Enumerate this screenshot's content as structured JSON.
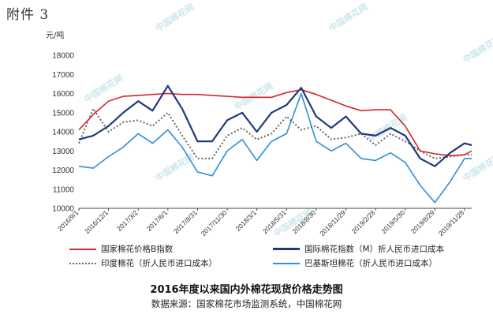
{
  "attachment_label": "附件 3",
  "caption": {
    "title": "2016年度以来国内外棉花现货价格走势图",
    "source": "数据来源：国家棉花市场监测系统，中国棉花网"
  },
  "watermark_text": "中国棉花网",
  "chart_data": {
    "type": "line",
    "ylabel": "元/吨",
    "ylim": [
      10000,
      18000
    ],
    "yticks": [
      10000,
      11000,
      12000,
      13000,
      14000,
      15000,
      16000,
      17000,
      18000
    ],
    "x_tick_labels": [
      "2016/9/1",
      "2016/12/1",
      "2017/3/2",
      "2017/6/1",
      "2017/8/31",
      "2017/11/30",
      "2018/3/1",
      "2018/5/31",
      "2018/8/30",
      "2018/11/29",
      "2019/2/28",
      "2019/5/30",
      "2019/8/29",
      "2019/11/28"
    ],
    "x": [
      "2016/9/1",
      "2016/10/15",
      "2016/12/1",
      "2017/1/15",
      "2017/3/2",
      "2017/4/15",
      "2017/6/1",
      "2017/7/15",
      "2017/8/31",
      "2017/10/15",
      "2017/11/30",
      "2018/1/15",
      "2018/3/1",
      "2018/4/15",
      "2018/5/31",
      "2018/7/15",
      "2018/8/30",
      "2018/10/15",
      "2018/11/29",
      "2019/1/15",
      "2019/2/28",
      "2019/4/15",
      "2019/5/30",
      "2019/7/15",
      "2019/8/29",
      "2019/10/15",
      "2019/11/28",
      "2019/12/20"
    ],
    "series": [
      {
        "name": "国家棉花价格B指数",
        "color": "#d62728",
        "values": [
          14100,
          14900,
          15600,
          15850,
          15900,
          15950,
          16000,
          15950,
          15950,
          15900,
          15850,
          15800,
          15800,
          15800,
          16050,
          16200,
          15950,
          15650,
          15350,
          15100,
          15150,
          15150,
          14300,
          13000,
          12850,
          12750,
          12800,
          13000
        ]
      },
      {
        "name": "国际棉花指数（M）折人民币进口成本",
        "color": "#1f3a7a",
        "values": [
          13600,
          13800,
          14300,
          15000,
          15600,
          15100,
          16400,
          15200,
          13500,
          13500,
          14600,
          15000,
          14000,
          15000,
          15400,
          16300,
          14800,
          14200,
          14800,
          13900,
          13800,
          14200,
          13800,
          12600,
          12200,
          12900,
          13400,
          13300
        ]
      },
      {
        "name": "印度棉花（折人民币进口成本）",
        "color": "#666666",
        "values": [
          13400,
          15200,
          14000,
          14500,
          14600,
          14300,
          15000,
          13800,
          12600,
          12600,
          13800,
          14200,
          13600,
          13900,
          14800,
          14100,
          14300,
          13600,
          13700,
          13900,
          13300,
          13900,
          13500,
          13000,
          12600,
          12700,
          12800,
          12800
        ]
      },
      {
        "name": "巴基斯坦棉花（折人民币进口成本）",
        "color": "#2f8fd8",
        "values": [
          12200,
          12100,
          12700,
          13200,
          13900,
          13400,
          14100,
          13200,
          11900,
          11700,
          13000,
          13600,
          12500,
          13500,
          13900,
          16000,
          13500,
          13000,
          13400,
          12600,
          12500,
          12900,
          12400,
          11200,
          10300,
          11400,
          12600,
          12600
        ]
      }
    ]
  }
}
